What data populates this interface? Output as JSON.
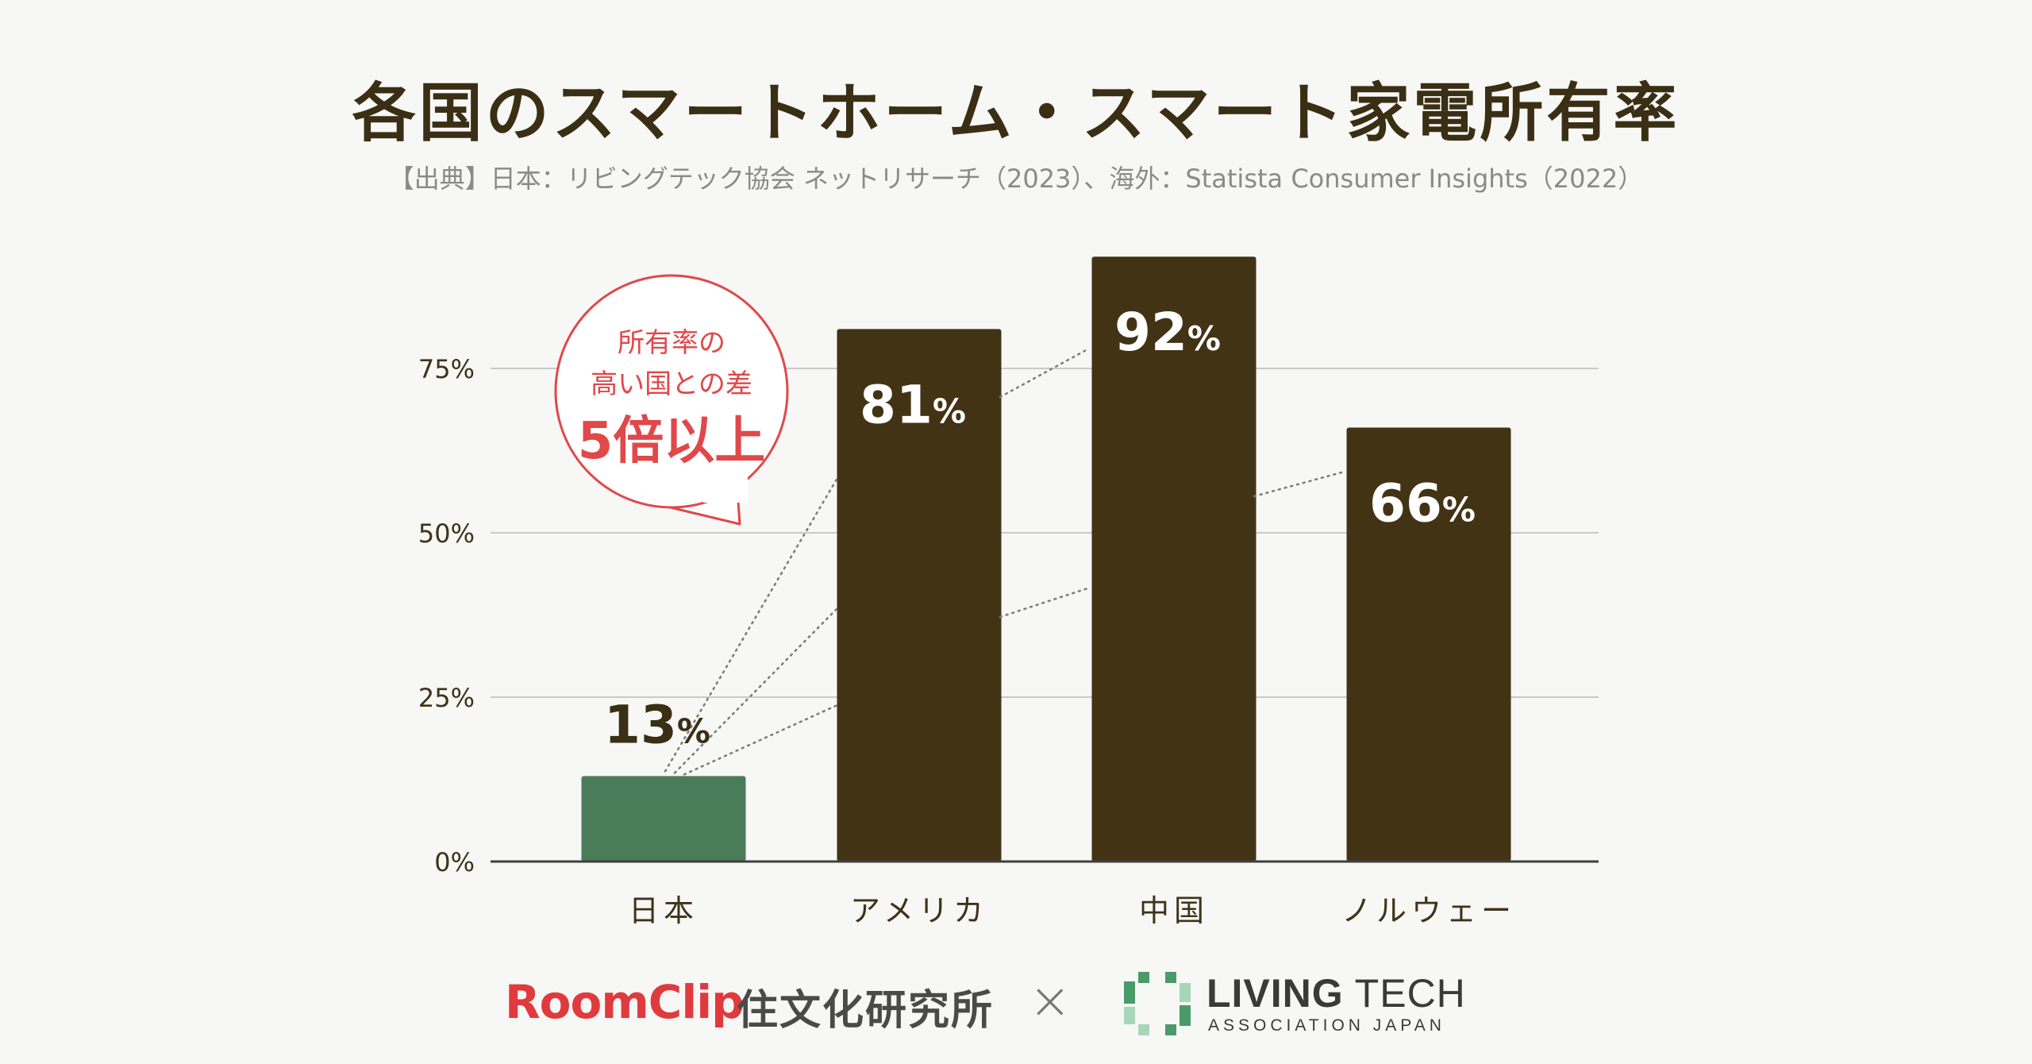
{
  "header": {
    "title": "各国のスマートホーム・スマート家電所有率",
    "source": "【出典】日本：リビングテック協会 ネットリサーチ（2023）、海外：Statista Consumer Insights（2022）"
  },
  "callout": {
    "line1": "所有率の",
    "line2": "高い国との差",
    "line3": "5倍以上"
  },
  "colors": {
    "highlight": "#4a7c59",
    "bar": "#433315",
    "accent": "#e0484a",
    "grid": "#c9c9c9",
    "axis": "#3f3f3f"
  },
  "chart_data": {
    "type": "bar",
    "categories": [
      "日本",
      "アメリカ",
      "中国",
      "ノルウェー"
    ],
    "values": [
      13,
      81,
      92,
      66
    ],
    "data_labels": [
      "13",
      "81",
      "92",
      "66"
    ],
    "label_unit": "%",
    "highlight_category": "日本",
    "y_ticks": [
      0,
      25,
      50,
      75
    ],
    "y_tick_labels": [
      "0%",
      "25%",
      "50%",
      "75%"
    ],
    "ylim": [
      0,
      100
    ],
    "grid": true,
    "title": "各国のスマートホーム・スマート家電所有率",
    "xlabel": "",
    "ylabel": ""
  },
  "footer": {
    "roomclip": "RoomClip",
    "roomclip_lab": "住文化研究所",
    "times": "×",
    "livingtech_bold": "LIVING",
    "livingtech_light": " TECH",
    "livingtech_sub": "ASSOCIATION JAPAN"
  }
}
